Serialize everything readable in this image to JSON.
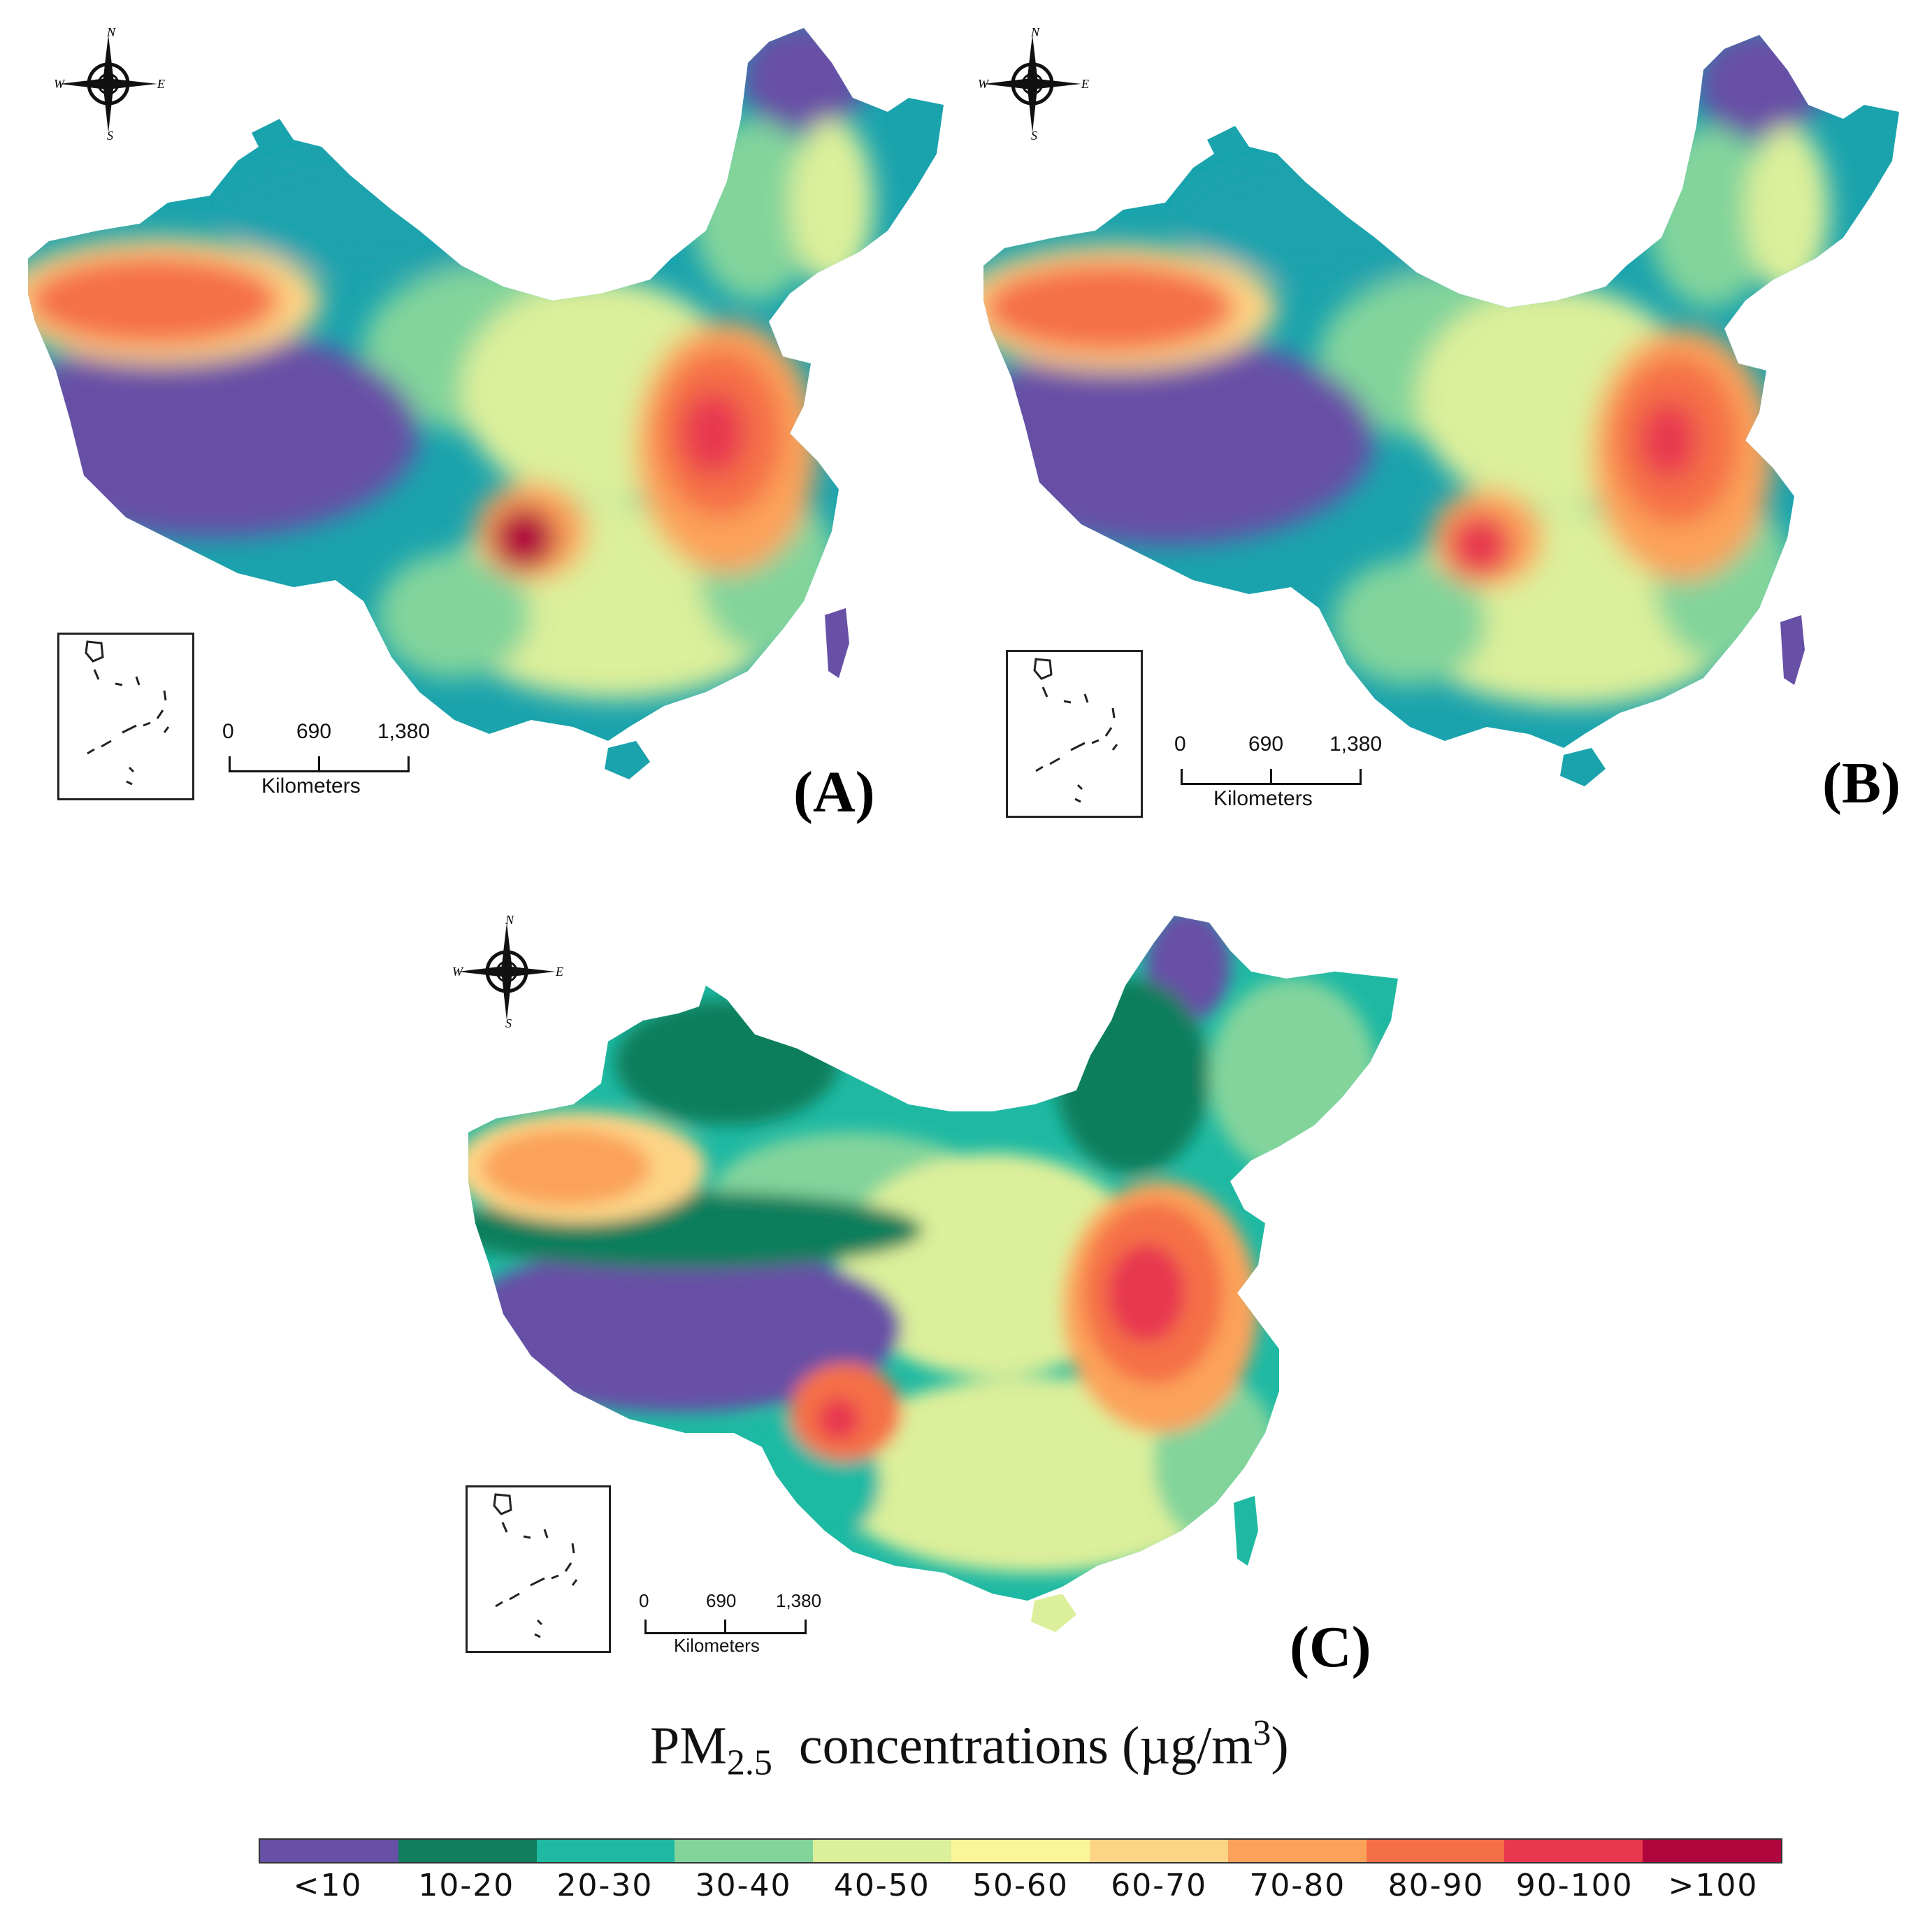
{
  "panels": [
    {
      "id": "A",
      "label": "(A)",
      "scale": {
        "ticks": [
          "0",
          "690",
          "1,380"
        ],
        "unit": "Kilometers"
      }
    },
    {
      "id": "B",
      "label": "(B)",
      "scale": {
        "ticks": [
          "0",
          "690",
          "1,380"
        ],
        "unit": "Kilometers"
      }
    },
    {
      "id": "C",
      "label": "(C)",
      "scale": {
        "ticks": [
          "0",
          "690",
          "1,380"
        ],
        "unit": "Kilometers"
      }
    }
  ],
  "compass": {
    "n": "N",
    "s": "S",
    "e": "E",
    "w": "W",
    "icon": "compass-rose-icon"
  },
  "legend": {
    "title_main": "PM",
    "title_sub": "2.5",
    "title_rest": "  concentrations (µg/m",
    "title_sup": "3",
    "title_end": ")",
    "classes": [
      {
        "label": "<10",
        "color": "#6750a6"
      },
      {
        "label": "10-20",
        "color": "#0f7e5c"
      },
      {
        "label": "20-30",
        "color": "#1fb9a3"
      },
      {
        "label": "30-40",
        "color": "#82d49b"
      },
      {
        "label": "40-50",
        "color": "#dcef9a"
      },
      {
        "label": "50-60",
        "color": "#fbf59a"
      },
      {
        "label": "60-70",
        "color": "#fdd486"
      },
      {
        "label": "70-80",
        "color": "#fba25a"
      },
      {
        "label": "80-90",
        "color": "#f56f46"
      },
      {
        "label": "90-100",
        "color": "#e8384f"
      },
      {
        "label": ">100",
        "color": "#b0063e"
      }
    ]
  }
}
